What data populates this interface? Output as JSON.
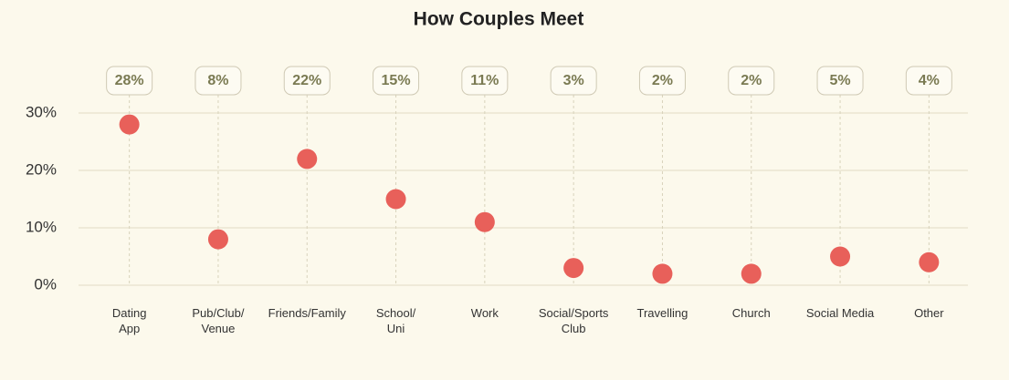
{
  "chart_data": {
    "type": "dot",
    "title": "How Couples Meet",
    "categories": [
      "Dating\nApp",
      "Pub/Club/\nVenue",
      "Friends/Family",
      "School/\nUni",
      "Work",
      "Social/Sports\nClub",
      "Travelling",
      "Church",
      "Social Media",
      "Other"
    ],
    "values": [
      28,
      8,
      22,
      15,
      11,
      3,
      2,
      2,
      5,
      4
    ],
    "value_labels": [
      "28%",
      "8%",
      "22%",
      "15%",
      "11%",
      "3%",
      "2%",
      "2%",
      "5%",
      "4%"
    ],
    "color": "#e8605a",
    "ylim": [
      0,
      30
    ],
    "yticks": [
      {
        "value": 0,
        "label": "0%"
      },
      {
        "value": 10,
        "label": "10%"
      },
      {
        "value": 20,
        "label": "20%"
      },
      {
        "value": 30,
        "label": "30%"
      }
    ],
    "grid": true
  }
}
